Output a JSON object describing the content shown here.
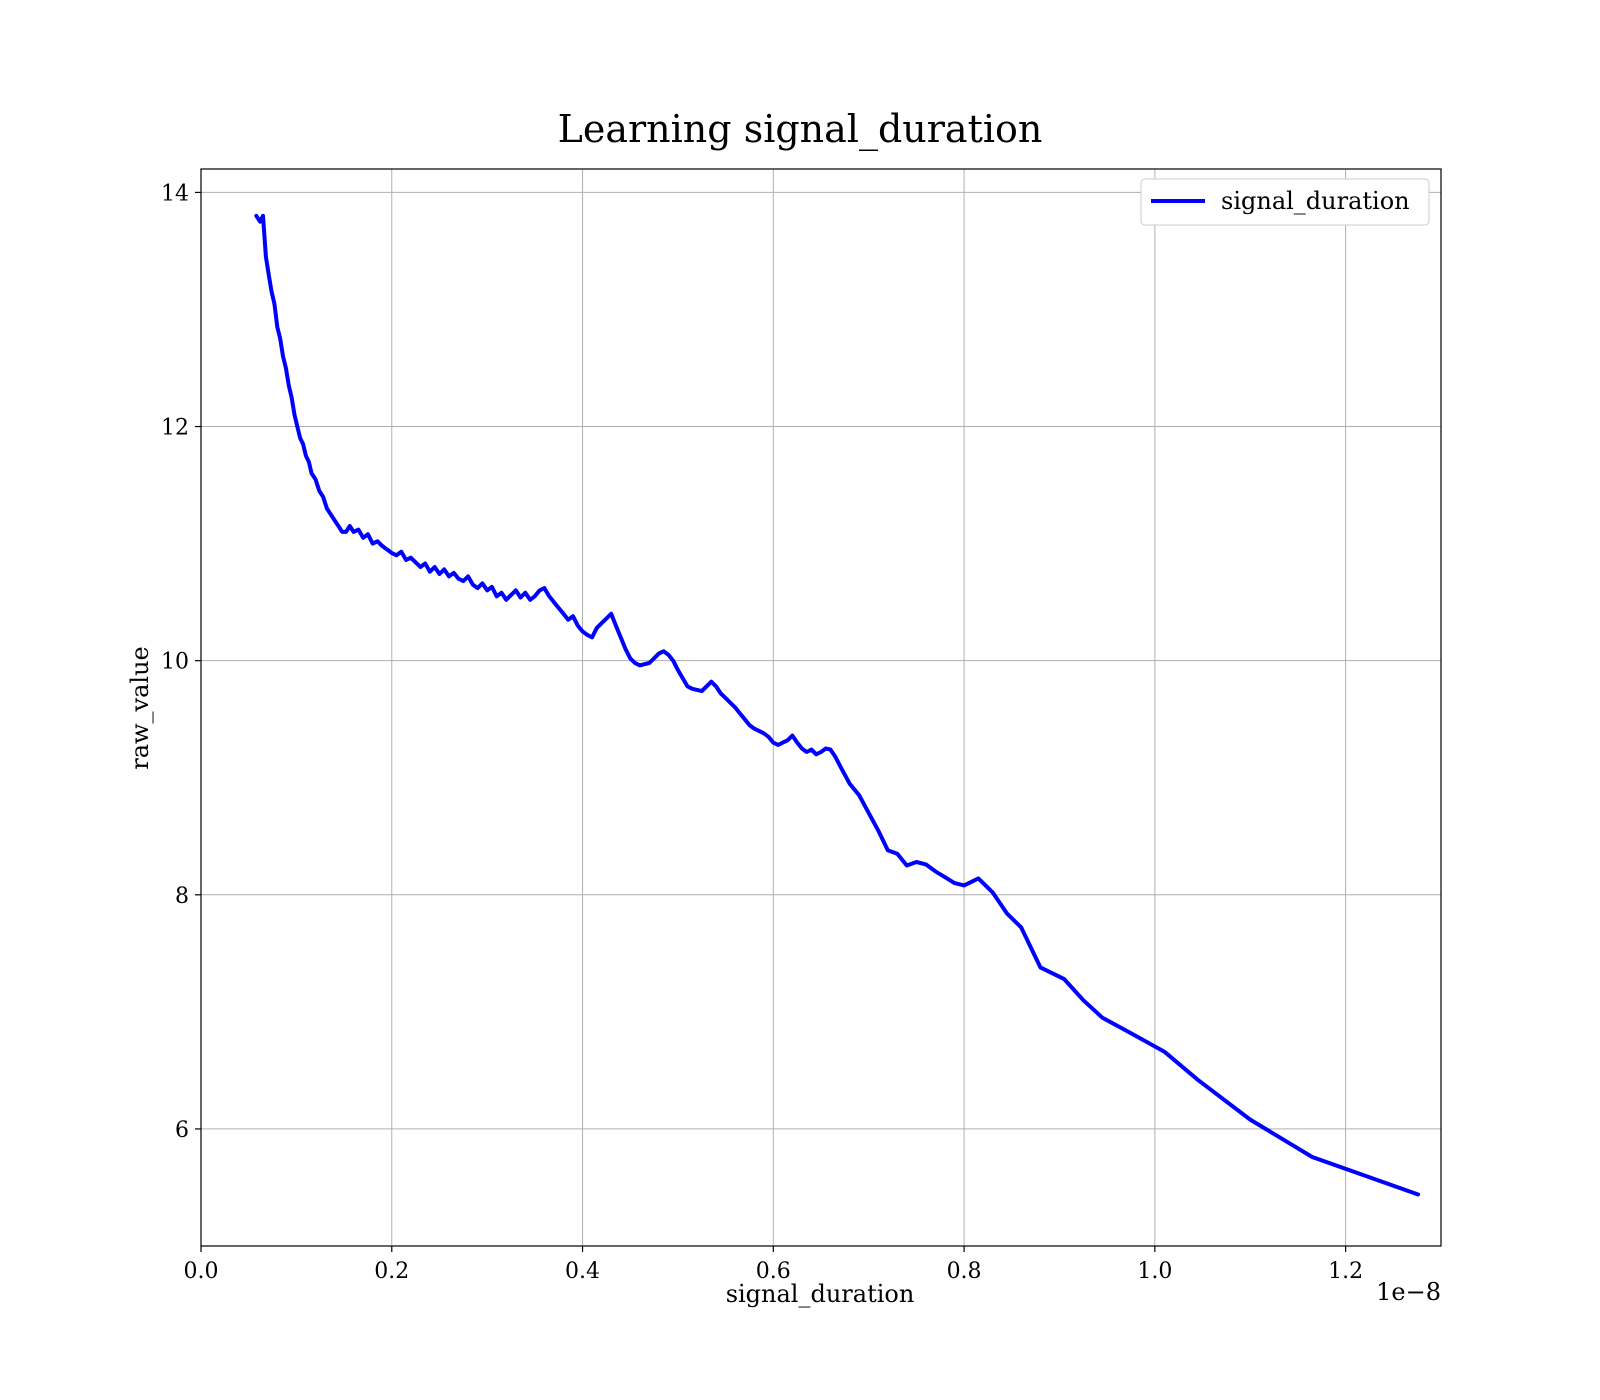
{
  "chart_data": {
    "type": "line",
    "title": "Learning signal_duration",
    "xlabel": "signal_duration",
    "ylabel": "raw_value",
    "x_offset_text": "1e−8",
    "xlim": [
      0.0,
      1.3
    ],
    "ylim": [
      5.0,
      14.2
    ],
    "x_ticks": [
      0.0,
      0.2,
      0.4,
      0.6,
      0.8,
      1.0,
      1.2
    ],
    "x_tick_labels": [
      "0.0",
      "0.2",
      "0.4",
      "0.6",
      "0.8",
      "1.0",
      "1.2"
    ],
    "y_ticks": [
      6,
      8,
      10,
      12,
      14
    ],
    "y_tick_labels": [
      "6",
      "8",
      "10",
      "12",
      "14"
    ],
    "grid": true,
    "legend_position": "top-right",
    "series": [
      {
        "name": "signal_duration",
        "color": "#0000ff",
        "x": [
          0.058,
          0.062,
          0.065,
          0.068,
          0.071,
          0.074,
          0.077,
          0.08,
          0.083,
          0.086,
          0.089,
          0.092,
          0.095,
          0.098,
          0.101,
          0.104,
          0.107,
          0.11,
          0.113,
          0.116,
          0.12,
          0.124,
          0.128,
          0.132,
          0.136,
          0.14,
          0.144,
          0.148,
          0.152,
          0.156,
          0.16,
          0.165,
          0.17,
          0.175,
          0.18,
          0.185,
          0.19,
          0.195,
          0.2,
          0.205,
          0.21,
          0.215,
          0.22,
          0.225,
          0.23,
          0.235,
          0.24,
          0.245,
          0.25,
          0.255,
          0.26,
          0.265,
          0.27,
          0.275,
          0.28,
          0.285,
          0.29,
          0.295,
          0.3,
          0.305,
          0.31,
          0.315,
          0.32,
          0.325,
          0.33,
          0.335,
          0.34,
          0.345,
          0.35,
          0.355,
          0.36,
          0.365,
          0.37,
          0.375,
          0.38,
          0.385,
          0.39,
          0.395,
          0.4,
          0.405,
          0.41,
          0.415,
          0.42,
          0.425,
          0.43,
          0.435,
          0.44,
          0.445,
          0.45,
          0.455,
          0.46,
          0.465,
          0.47,
          0.475,
          0.48,
          0.485,
          0.49,
          0.495,
          0.5,
          0.505,
          0.51,
          0.515,
          0.52,
          0.525,
          0.53,
          0.535,
          0.54,
          0.545,
          0.55,
          0.555,
          0.56,
          0.565,
          0.57,
          0.575,
          0.58,
          0.585,
          0.59,
          0.595,
          0.6,
          0.605,
          0.61,
          0.615,
          0.62,
          0.625,
          0.63,
          0.635,
          0.64,
          0.645,
          0.65,
          0.655,
          0.66,
          0.665,
          0.67,
          0.68,
          0.69,
          0.7,
          0.71,
          0.72,
          0.73,
          0.74,
          0.75,
          0.76,
          0.77,
          0.78,
          0.79,
          0.8,
          0.815,
          0.83,
          0.845,
          0.86,
          0.88,
          0.905,
          0.925,
          0.945,
          0.97,
          1.01,
          1.045,
          1.1,
          1.165,
          1.276
        ],
        "y": [
          13.8,
          13.75,
          13.8,
          13.45,
          13.3,
          13.15,
          13.05,
          12.85,
          12.75,
          12.6,
          12.5,
          12.35,
          12.25,
          12.1,
          12.0,
          11.9,
          11.85,
          11.75,
          11.7,
          11.6,
          11.55,
          11.45,
          11.4,
          11.3,
          11.25,
          11.2,
          11.15,
          11.1,
          11.1,
          11.15,
          11.1,
          11.12,
          11.05,
          11.08,
          11.0,
          11.02,
          10.98,
          10.95,
          10.92,
          10.9,
          10.93,
          10.86,
          10.88,
          10.84,
          10.8,
          10.83,
          10.76,
          10.8,
          10.74,
          10.78,
          10.72,
          10.75,
          10.7,
          10.68,
          10.72,
          10.65,
          10.62,
          10.66,
          10.6,
          10.63,
          10.55,
          10.58,
          10.52,
          10.56,
          10.6,
          10.54,
          10.58,
          10.52,
          10.55,
          10.6,
          10.62,
          10.55,
          10.5,
          10.45,
          10.4,
          10.35,
          10.38,
          10.3,
          10.25,
          10.22,
          10.2,
          10.28,
          10.32,
          10.36,
          10.4,
          10.3,
          10.2,
          10.1,
          10.02,
          9.98,
          9.96,
          9.97,
          9.98,
          10.02,
          10.06,
          10.08,
          10.05,
          10.0,
          9.92,
          9.85,
          9.78,
          9.76,
          9.75,
          9.74,
          9.78,
          9.82,
          9.78,
          9.72,
          9.68,
          9.64,
          9.6,
          9.55,
          9.5,
          9.45,
          9.42,
          9.4,
          9.38,
          9.35,
          9.3,
          9.28,
          9.3,
          9.32,
          9.36,
          9.3,
          9.25,
          9.22,
          9.24,
          9.2,
          9.22,
          9.25,
          9.24,
          9.18,
          9.1,
          8.95,
          8.85,
          8.7,
          8.55,
          8.38,
          8.35,
          8.25,
          8.28,
          8.26,
          8.2,
          8.15,
          8.1,
          8.08,
          8.14,
          8.02,
          7.84,
          7.72,
          7.38,
          7.28,
          7.1,
          6.95,
          6.84,
          6.66,
          6.42,
          6.08,
          5.76,
          5.44
        ]
      }
    ]
  }
}
